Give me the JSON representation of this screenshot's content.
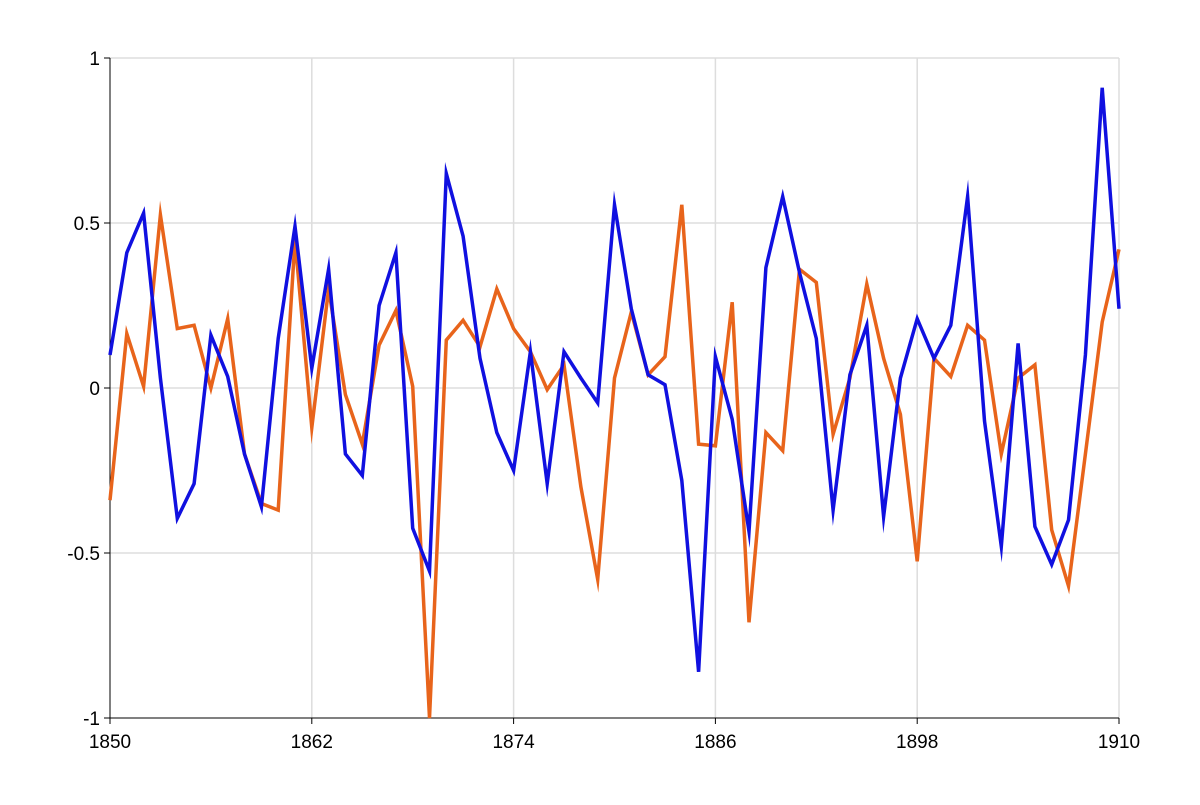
{
  "chart_data": {
    "type": "line",
    "title": "",
    "xlabel": "",
    "ylabel": "",
    "xlim": [
      1850,
      1910
    ],
    "ylim": [
      -1,
      1
    ],
    "x_ticks": [
      1850,
      1862,
      1874,
      1886,
      1898,
      1910
    ],
    "y_ticks": [
      -1,
      -0.5,
      0,
      0.5,
      1
    ],
    "x_tick_labels": [
      "1850",
      "1862",
      "1874",
      "1886",
      "1898",
      "1910"
    ],
    "y_tick_labels": [
      "-1",
      "-0.5",
      "0",
      "0.5",
      "1"
    ],
    "grid": true,
    "legend": "none",
    "x": [
      1850,
      1851,
      1852,
      1853,
      1854,
      1855,
      1856,
      1857,
      1858,
      1859,
      1860,
      1861,
      1862,
      1863,
      1864,
      1865,
      1866,
      1867,
      1868,
      1869,
      1870,
      1871,
      1872,
      1873,
      1874,
      1875,
      1876,
      1877,
      1878,
      1879,
      1880,
      1881,
      1882,
      1883,
      1884,
      1885,
      1886,
      1887,
      1888,
      1889,
      1890,
      1891,
      1892,
      1893,
      1894,
      1895,
      1896,
      1897,
      1898,
      1899,
      1900,
      1901,
      1902,
      1903,
      1904,
      1905,
      1906,
      1907,
      1908,
      1909,
      1910
    ],
    "series": [
      {
        "color": "#e8641b",
        "values": [
          -0.34,
          0.165,
          0.005,
          0.525,
          0.18,
          0.19,
          0.0,
          0.21,
          -0.2,
          -0.35,
          -0.37,
          0.45,
          -0.12,
          0.3,
          -0.02,
          -0.17,
          0.13,
          0.235,
          0.005,
          -1.0,
          0.145,
          0.205,
          0.125,
          0.3,
          0.18,
          0.11,
          -0.005,
          0.07,
          -0.3,
          -0.58,
          0.03,
          0.23,
          0.04,
          0.095,
          0.555,
          -0.17,
          -0.175,
          0.26,
          -0.71,
          -0.135,
          -0.19,
          0.36,
          0.32,
          -0.14,
          0.03,
          0.315,
          0.09,
          -0.08,
          -0.525,
          0.09,
          0.035,
          0.19,
          0.145,
          -0.2,
          0.03,
          0.07,
          -0.43,
          -0.6,
          -0.2,
          0.2,
          0.42
        ]
      },
      {
        "color": "#1010e0",
        "values": [
          0.1,
          0.41,
          0.53,
          0.03,
          -0.395,
          -0.29,
          0.16,
          0.035,
          -0.2,
          -0.36,
          0.15,
          0.49,
          0.06,
          0.36,
          -0.2,
          -0.265,
          0.25,
          0.41,
          -0.425,
          -0.555,
          0.65,
          0.46,
          0.09,
          -0.135,
          -0.25,
          0.11,
          -0.29,
          0.11,
          0.03,
          -0.045,
          0.555,
          0.24,
          0.04,
          0.01,
          -0.28,
          -0.86,
          0.095,
          -0.095,
          -0.435,
          0.365,
          0.58,
          0.35,
          0.15,
          -0.37,
          0.04,
          0.19,
          -0.39,
          0.03,
          0.21,
          0.09,
          0.19,
          0.58,
          -0.1,
          -0.48,
          0.135,
          -0.42,
          -0.535,
          -0.4,
          0.1,
          0.91,
          0.24
        ]
      }
    ]
  }
}
